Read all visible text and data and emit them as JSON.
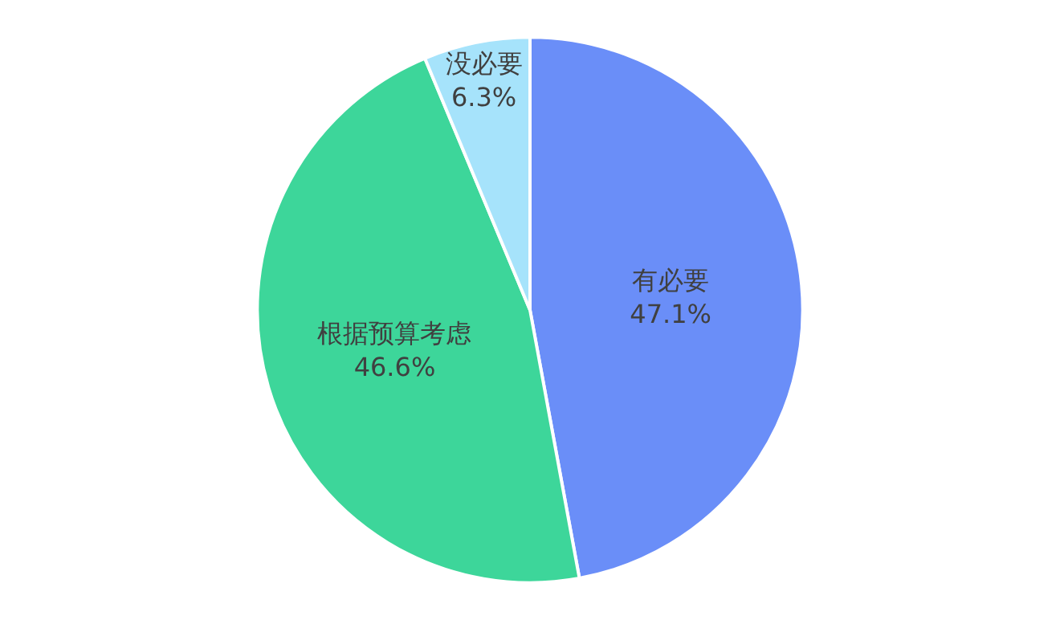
{
  "chart_data": {
    "type": "pie",
    "categories": [
      "有必要",
      "根据预算考虑",
      "没必要"
    ],
    "values": [
      47.1,
      46.6,
      6.3
    ],
    "colors": [
      "#6a8ef8",
      "#3dd69a",
      "#a6e3fb"
    ],
    "value_labels": [
      "47.1%",
      "46.6%",
      "6.3%"
    ],
    "legend": false
  }
}
